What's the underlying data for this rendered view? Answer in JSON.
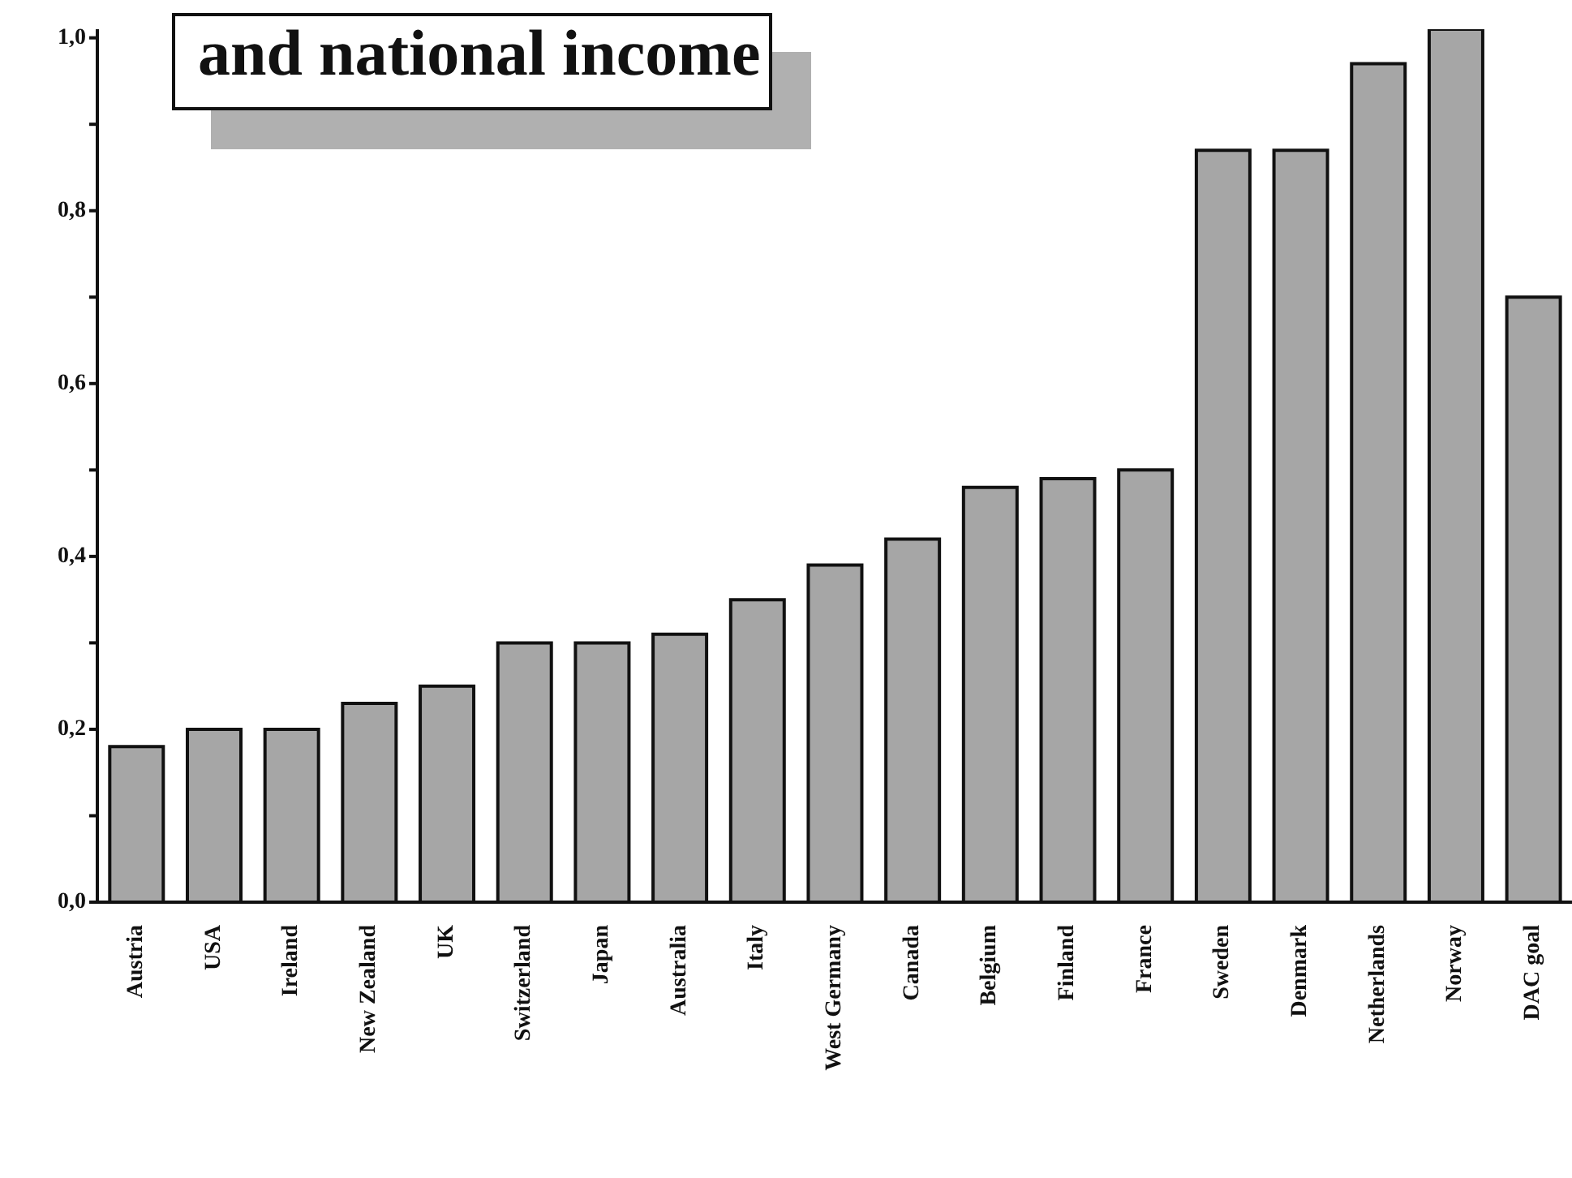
{
  "chart_data": {
    "type": "bar",
    "title": "and national income",
    "categories": [
      "Austria",
      "USA",
      "Ireland",
      "New Zealand",
      "UK",
      "Switzerland",
      "Japan",
      "Australia",
      "Italy",
      "West Germany",
      "Canada",
      "Belgium",
      "Finland",
      "France",
      "Sweden",
      "Denmark",
      "Netherlands",
      "Norway",
      "DAC goal"
    ],
    "values": [
      0.18,
      0.2,
      0.2,
      0.23,
      0.25,
      0.3,
      0.3,
      0.31,
      0.35,
      0.39,
      0.42,
      0.48,
      0.49,
      0.5,
      0.87,
      0.87,
      0.97,
      1.01,
      0.7
    ],
    "color": "#a6a6a6",
    "ylim": [
      0,
      1.01
    ],
    "yticks": [
      {
        "value": 0,
        "label": "0,0"
      },
      {
        "value": 0.1,
        "label": null
      },
      {
        "value": 0.2,
        "label": "0,2"
      },
      {
        "value": 0.3,
        "label": null
      },
      {
        "value": 0.4,
        "label": "0,4"
      },
      {
        "value": 0.5,
        "label": null
      },
      {
        "value": 0.6,
        "label": "0,6"
      },
      {
        "value": 0.7,
        "label": null
      },
      {
        "value": 0.8,
        "label": "0,8"
      },
      {
        "value": 0.9,
        "label": null
      },
      {
        "value": 1,
        "label": "1,0"
      }
    ],
    "grid": false,
    "legend": false
  }
}
